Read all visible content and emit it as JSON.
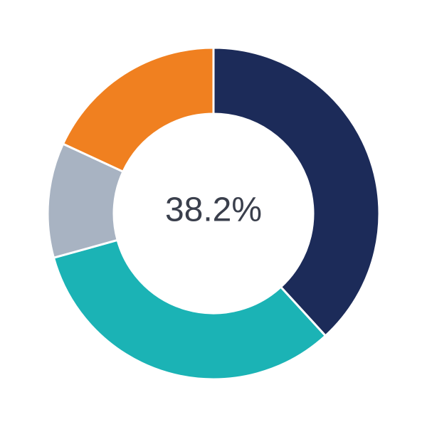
{
  "chart_data": {
    "type": "donut",
    "values": [
      38.2,
      32.5,
      11.2,
      18.1
    ],
    "colors": [
      "#1c2b59",
      "#1bb3b5",
      "#a8b3c2",
      "#f08020"
    ],
    "center_label": "38.2%"
  }
}
